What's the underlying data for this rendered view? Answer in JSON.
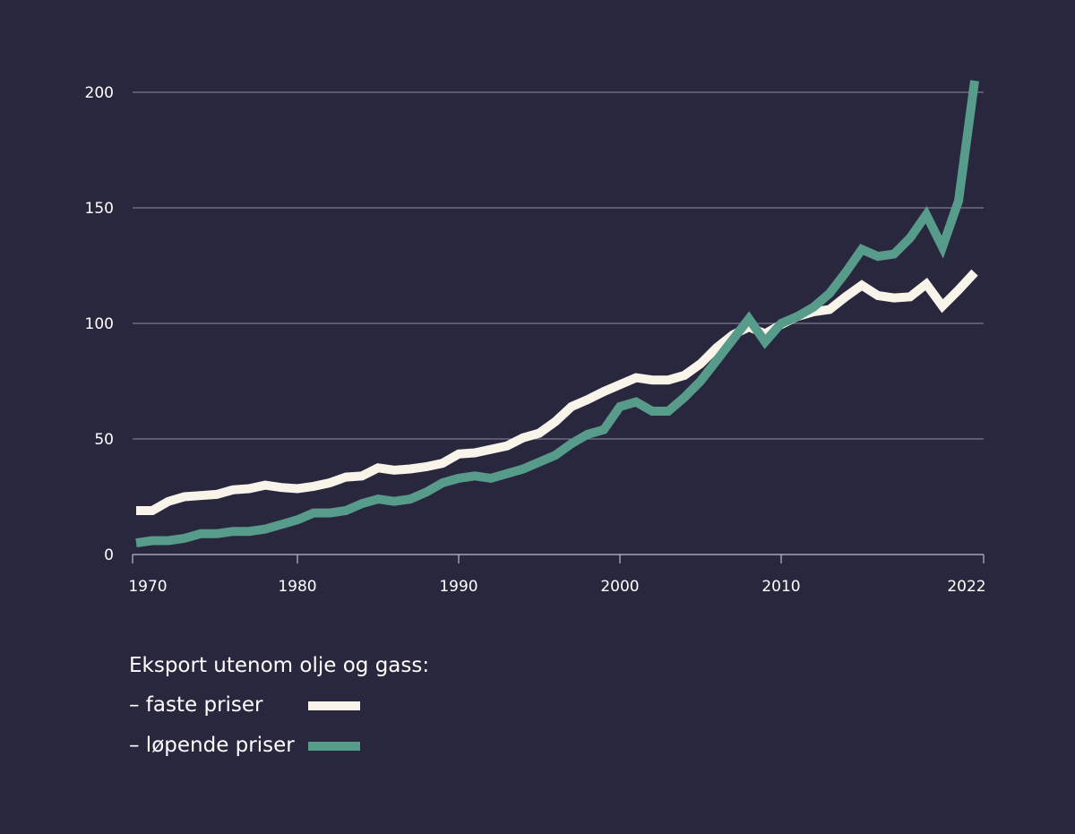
{
  "chart_data": {
    "type": "line",
    "title": "",
    "xlabel": "",
    "ylabel": "",
    "xlim": [
      1970,
      2022
    ],
    "ylim": [
      0,
      200
    ],
    "grid": true,
    "legend_position": "bottom-left",
    "legend_title": "Eksport utenom olje og gass:",
    "y_ticks": [
      {
        "value": 0,
        "label": "0"
      },
      {
        "value": 50,
        "label": "50"
      },
      {
        "value": 100,
        "label": "100"
      },
      {
        "value": 150,
        "label": "150"
      },
      {
        "value": 200,
        "label": "200"
      }
    ],
    "x_ticks": [
      {
        "value": 1970,
        "label": "1970"
      },
      {
        "value": 1980,
        "label": "1980"
      },
      {
        "value": 1990,
        "label": "1990"
      },
      {
        "value": 2000,
        "label": "2000"
      },
      {
        "value": 2010,
        "label": "2010"
      },
      {
        "value": 2022,
        "label": "2022"
      }
    ],
    "x": [
      1970,
      1971,
      1972,
      1973,
      1974,
      1975,
      1976,
      1977,
      1978,
      1979,
      1980,
      1981,
      1982,
      1983,
      1984,
      1985,
      1986,
      1987,
      1988,
      1989,
      1990,
      1991,
      1992,
      1993,
      1994,
      1995,
      1996,
      1997,
      1998,
      1999,
      2000,
      2001,
      2002,
      2003,
      2004,
      2005,
      2006,
      2007,
      2008,
      2009,
      2010,
      2011,
      2012,
      2013,
      2014,
      2015,
      2016,
      2017,
      2018,
      2019,
      2020,
      2021,
      2022
    ],
    "series": [
      {
        "name": "– faste priser",
        "color": "#f8f4ea",
        "values": [
          19,
          19,
          23,
          25,
          25.5,
          26,
          28,
          28.5,
          30,
          29,
          28.5,
          29.5,
          31,
          33.5,
          34,
          37.5,
          36.5,
          37,
          38,
          39.5,
          43.5,
          44,
          45.5,
          47,
          50.5,
          52.5,
          57.5,
          64,
          67,
          70.5,
          73.5,
          76.5,
          75.5,
          75.5,
          77.5,
          82.5,
          89.5,
          95,
          98.5,
          95.5,
          99.5,
          103,
          105,
          106,
          111.5,
          116.5,
          112,
          111,
          111.5,
          117,
          107.5,
          114.5,
          122
        ]
      },
      {
        "name": "– løpende priser",
        "color": "#579b8b",
        "values": [
          5,
          6,
          6,
          7,
          9,
          9,
          10,
          10,
          11,
          13,
          15,
          18,
          18,
          19,
          22,
          24,
          23,
          24,
          27,
          31,
          33,
          34,
          33,
          35,
          37,
          40,
          43,
          48,
          52,
          54,
          64,
          66,
          62,
          62,
          68,
          75,
          84,
          93,
          102,
          92,
          100,
          103,
          107,
          113,
          122,
          132,
          129,
          130,
          137,
          147,
          133,
          153,
          205
        ]
      }
    ]
  }
}
